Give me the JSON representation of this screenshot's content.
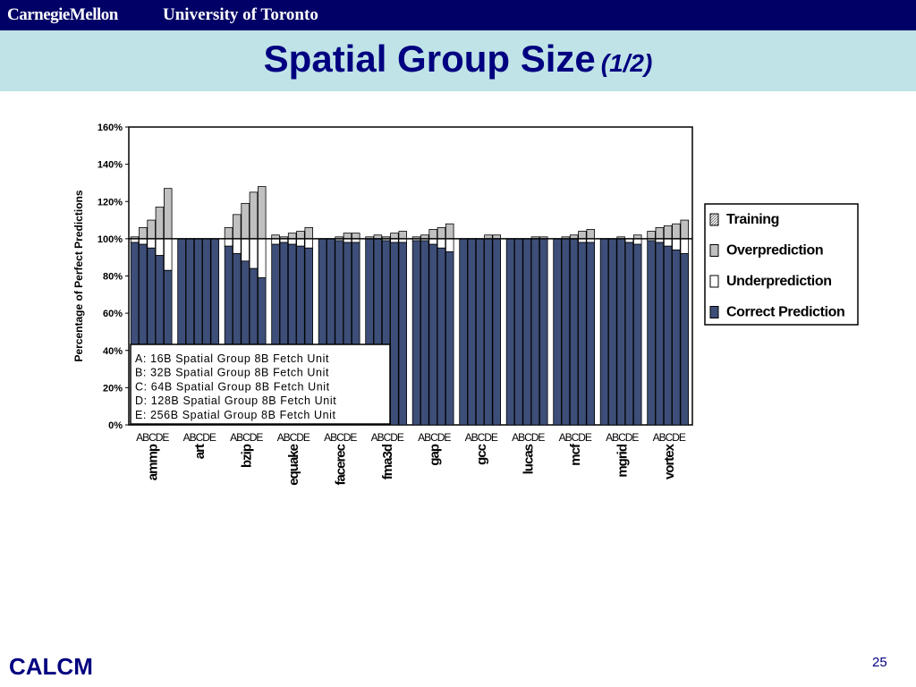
{
  "header": {
    "brand_left": "CarnegieMellon",
    "brand_right": "University of Toronto",
    "title": "Spatial Group Size",
    "title_sub": "(1/2)",
    "bar_color": "#000066",
    "title_band_color": "#bfe3e6",
    "title_color": "#000080"
  },
  "footer": {
    "label": "CALCM",
    "page": "25"
  },
  "chart_data": {
    "type": "bar",
    "stacked": true,
    "ylabel": "Percentage of Perfect Predictions",
    "xlabel": "",
    "ylim": [
      0,
      160
    ],
    "yticks": [
      "0%",
      "20%",
      "40%",
      "60%",
      "80%",
      "100%",
      "120%",
      "140%",
      "160%"
    ],
    "grid": false,
    "reference_line": 100,
    "categories": [
      "ammp",
      "art",
      "bzip",
      "equake",
      "facerec",
      "fma3d",
      "gap",
      "gcc",
      "lucas",
      "mcf",
      "mgrid",
      "vortex"
    ],
    "sub_categories": [
      "A",
      "B",
      "C",
      "D",
      "E"
    ],
    "legend_position": "right",
    "series": [
      {
        "name": "Training",
        "color": "#c8c8c8",
        "pattern": "hatch"
      },
      {
        "name": "Overprediction",
        "color": "#c0c0c0"
      },
      {
        "name": "Underprediction",
        "color": "#ffffff"
      },
      {
        "name": "Correct Prediction",
        "color": "#3d4e78"
      }
    ],
    "correct": [
      [
        98,
        97,
        95,
        91,
        83
      ],
      [
        100,
        100,
        100,
        100,
        100
      ],
      [
        96,
        92,
        88,
        84,
        79
      ],
      [
        97,
        98,
        97,
        96,
        95
      ],
      [
        100,
        100,
        99,
        98,
        98
      ],
      [
        100,
        100,
        99,
        98,
        98
      ],
      [
        99,
        99,
        97,
        95,
        93
      ],
      [
        100,
        100,
        100,
        100,
        100
      ],
      [
        100,
        100,
        100,
        100,
        100
      ],
      [
        100,
        100,
        100,
        98,
        98
      ],
      [
        100,
        100,
        100,
        98,
        97
      ],
      [
        99,
        98,
        96,
        94,
        92
      ]
    ],
    "total": [
      [
        101,
        106,
        110,
        117,
        127
      ],
      [
        100,
        100,
        100,
        100,
        100
      ],
      [
        106,
        113,
        119,
        125,
        128
      ],
      [
        102,
        101,
        103,
        104,
        106
      ],
      [
        100,
        100,
        101,
        103,
        103
      ],
      [
        101,
        102,
        101,
        103,
        104
      ],
      [
        101,
        102,
        105,
        106,
        108
      ],
      [
        100,
        100,
        100,
        102,
        102
      ],
      [
        100,
        100,
        100,
        101,
        101
      ],
      [
        100,
        101,
        102,
        104,
        105
      ],
      [
        100,
        100,
        101,
        100,
        102
      ],
      [
        104,
        106,
        107,
        108,
        110
      ]
    ],
    "config_box": [
      "A: 16B Spatial Group  8B Fetch Unit",
      "B: 32B Spatial Group  8B Fetch Unit",
      "C: 64B Spatial Group  8B Fetch Unit",
      "D: 128B Spatial Group  8B Fetch Unit",
      "E: 256B Spatial Group  8B Fetch Unit"
    ]
  }
}
